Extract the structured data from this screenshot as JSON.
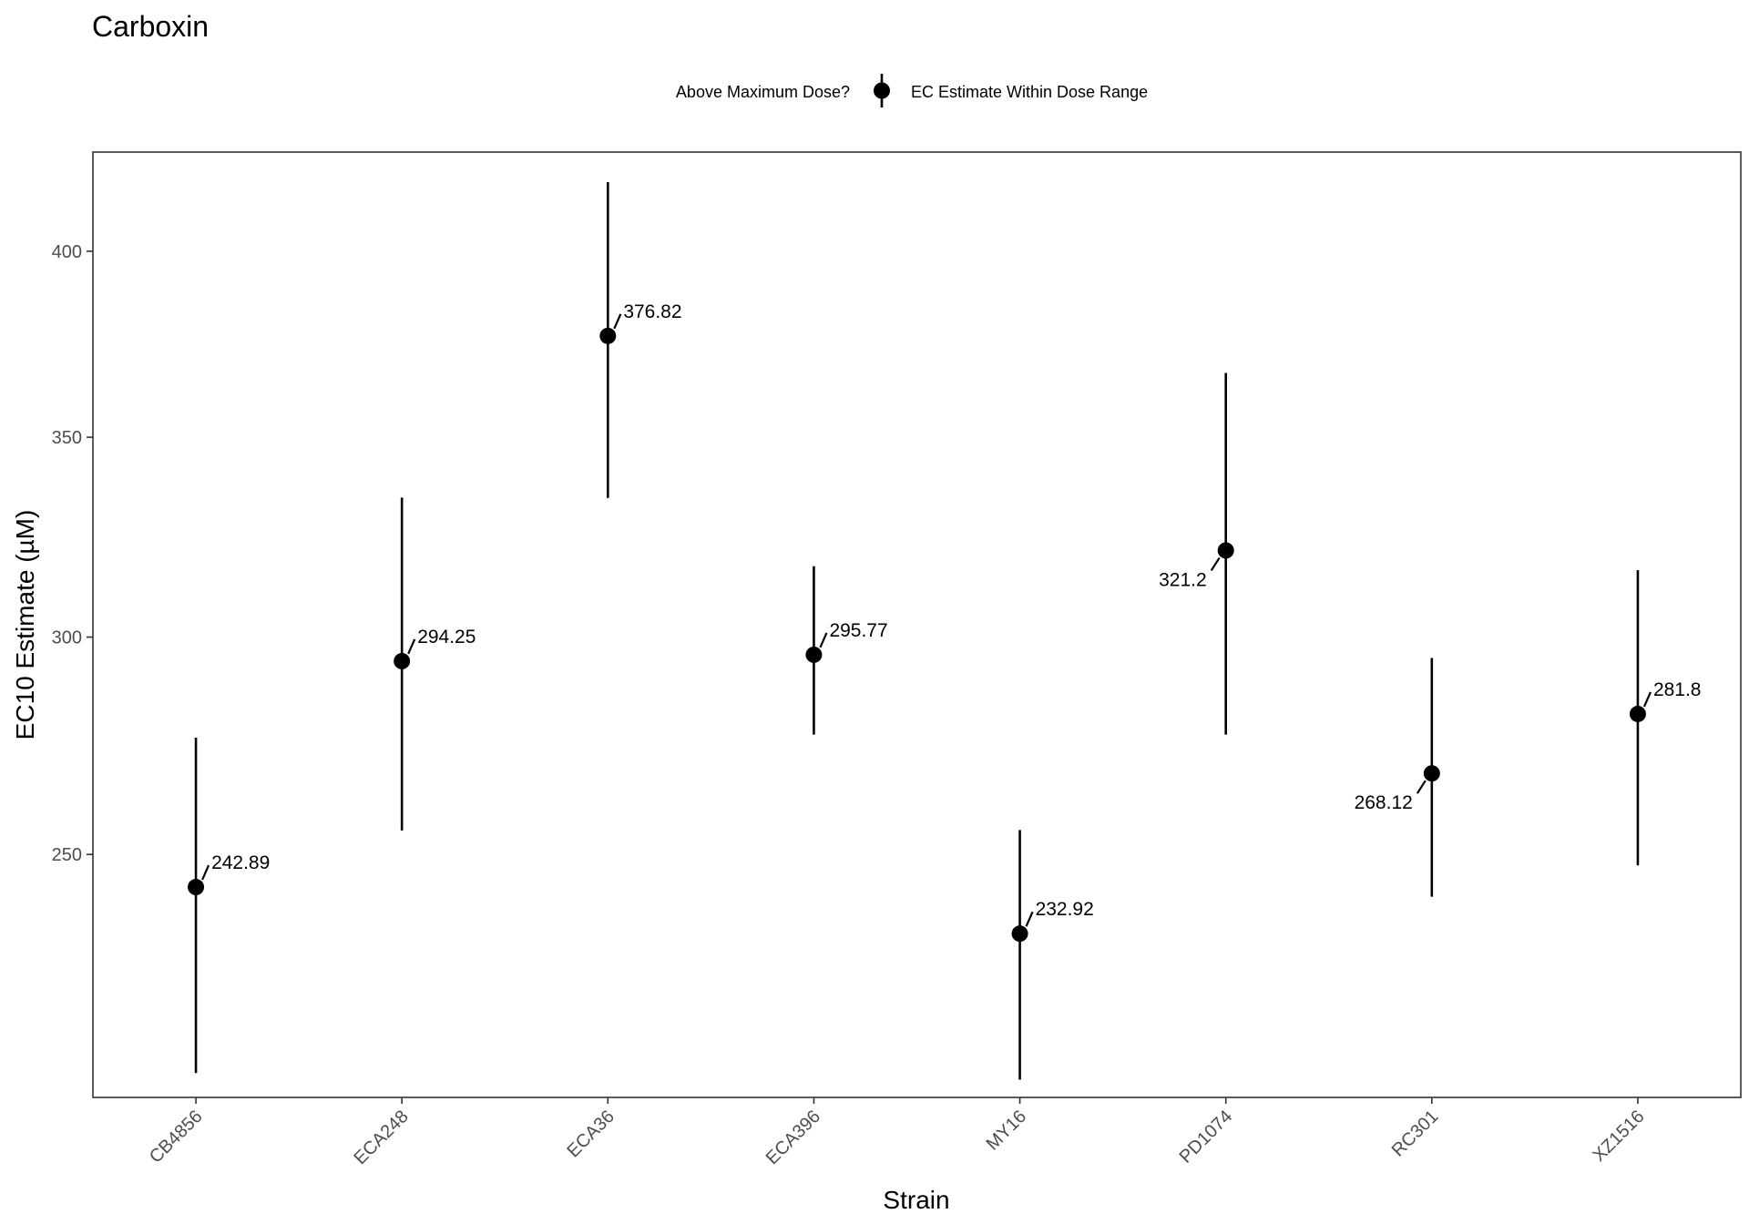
{
  "chart_data": {
    "type": "scatter",
    "title": "Carboxin",
    "xlabel": "Strain",
    "ylabel": "EC10 Estimate (µM)",
    "legend": {
      "title": "Above Maximum Dose?",
      "entries": [
        "EC Estimate Within Dose Range"
      ],
      "placement": "top"
    },
    "categories": [
      "CB4856",
      "ECA248",
      "ECA36",
      "ECA396",
      "MY16",
      "PD1074",
      "RC301",
      "XZ1516"
    ],
    "series": [
      {
        "name": "EC Estimate Within Dose Range",
        "values": [
          242.89,
          294.25,
          376.82,
          295.77,
          232.92,
          321.2,
          268.12,
          281.8
        ],
        "lower": [
          204.3,
          255.3,
          334.4,
          277.0,
          203.0,
          277.0,
          240.8,
          247.6
        ],
        "upper": [
          276.3,
          334.5,
          419.4,
          317.3,
          255.4,
          366.9,
          295.0,
          316.3
        ],
        "labels": [
          "242.89",
          "294.25",
          "376.82",
          "295.77",
          "232.92",
          "321.2",
          "268.12",
          "281.8"
        ]
      }
    ],
    "ylim": [
      199.5,
      428
    ],
    "y_scale": "sqrt",
    "y_ticks": [
      250,
      300,
      350,
      400
    ],
    "grid": false,
    "marker_color": "#000000"
  }
}
